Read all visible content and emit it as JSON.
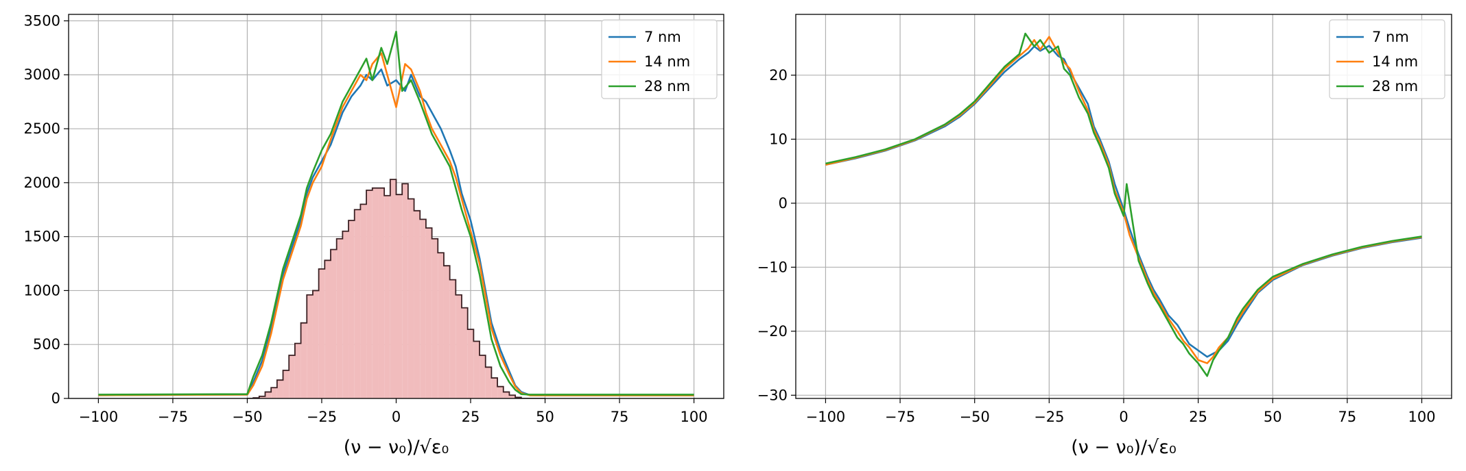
{
  "chart_data": [
    {
      "type": "line",
      "xlabel": "(ν − ν₀)/√ε₀",
      "xlim": [
        -110,
        110
      ],
      "ylim": [
        0,
        3560
      ],
      "xticks": [
        -100,
        -75,
        -50,
        -25,
        0,
        25,
        50,
        75,
        100
      ],
      "yticks": [
        0,
        500,
        1000,
        1500,
        2000,
        2500,
        3000,
        3500
      ],
      "xtick_labels": [
        "−100",
        "−75",
        "−50",
        "−25",
        "0",
        "25",
        "50",
        "75",
        "100"
      ],
      "ytick_labels": [
        "0",
        "500",
        "1000",
        "1500",
        "2000",
        "2500",
        "3000",
        "3500"
      ],
      "grid": true,
      "legend": "top-right",
      "series": [
        {
          "name": "7 nm",
          "color": "#1f77b4",
          "x": [
            -100,
            -50,
            -48,
            -45,
            -42,
            -40,
            -38,
            -35,
            -32,
            -30,
            -28,
            -25,
            -22,
            -20,
            -18,
            -15,
            -12,
            -10,
            -8,
            -5,
            -3,
            0,
            3,
            5,
            8,
            10,
            12,
            15,
            18,
            20,
            22,
            25,
            28,
            30,
            32,
            35,
            38,
            40,
            42,
            45,
            48,
            50,
            100
          ],
          "y": [
            30,
            35,
            150,
            350,
            650,
            900,
            1150,
            1400,
            1650,
            1900,
            2050,
            2200,
            2350,
            2500,
            2650,
            2800,
            2900,
            3000,
            2950,
            3050,
            2900,
            2950,
            2850,
            3000,
            2800,
            2750,
            2650,
            2500,
            2300,
            2150,
            1900,
            1650,
            1300,
            1000,
            700,
            450,
            250,
            120,
            60,
            30,
            28,
            28,
            28
          ]
        },
        {
          "name": "14 nm",
          "color": "#ff7f0e",
          "x": [
            -100,
            -50,
            -48,
            -45,
            -42,
            -40,
            -38,
            -35,
            -32,
            -30,
            -28,
            -25,
            -22,
            -20,
            -18,
            -15,
            -12,
            -10,
            -8,
            -5,
            -3,
            0,
            3,
            5,
            8,
            10,
            12,
            15,
            18,
            20,
            22,
            25,
            28,
            30,
            32,
            35,
            38,
            40,
            42,
            45,
            48,
            50,
            100
          ],
          "y": [
            30,
            35,
            120,
            300,
            600,
            850,
            1100,
            1350,
            1600,
            1850,
            2000,
            2150,
            2400,
            2550,
            2700,
            2850,
            3000,
            2950,
            3100,
            3200,
            3000,
            2700,
            3100,
            3050,
            2850,
            2650,
            2500,
            2350,
            2200,
            2050,
            1850,
            1550,
            1250,
            950,
            650,
            400,
            220,
            110,
            50,
            28,
            28,
            28,
            28
          ]
        },
        {
          "name": "28 nm",
          "color": "#2ca02c",
          "x": [
            -100,
            -50,
            -48,
            -45,
            -42,
            -40,
            -38,
            -35,
            -32,
            -30,
            -28,
            -25,
            -22,
            -20,
            -18,
            -15,
            -12,
            -10,
            -8,
            -5,
            -3,
            0,
            2,
            5,
            8,
            10,
            12,
            15,
            18,
            20,
            22,
            25,
            28,
            30,
            32,
            35,
            38,
            40,
            42,
            45,
            48,
            50,
            100
          ],
          "y": [
            35,
            40,
            200,
            400,
            700,
            950,
            1200,
            1450,
            1700,
            1950,
            2100,
            2300,
            2450,
            2600,
            2750,
            2900,
            3050,
            3150,
            2950,
            3250,
            3100,
            3400,
            2850,
            2950,
            2750,
            2600,
            2450,
            2300,
            2150,
            1950,
            1750,
            1500,
            1150,
            850,
            550,
            300,
            150,
            80,
            40,
            35,
            35,
            35,
            35
          ]
        }
      ],
      "histogram": {
        "color": "#f1bcbd",
        "edgecolor": "#3a1f22",
        "bin_edges": [
          -50,
          -48,
          -46,
          -44,
          -42,
          -40,
          -38,
          -36,
          -34,
          -32,
          -30,
          -28,
          -26,
          -24,
          -22,
          -20,
          -18,
          -16,
          -14,
          -12,
          -10,
          -8,
          -6,
          -4,
          -2,
          0,
          2,
          4,
          6,
          8,
          10,
          12,
          14,
          16,
          18,
          20,
          22,
          24,
          26,
          28,
          30,
          32,
          34,
          36,
          38,
          40,
          42,
          44,
          46,
          48,
          50
        ],
        "counts": [
          0,
          5,
          20,
          60,
          100,
          170,
          260,
          400,
          510,
          700,
          960,
          1000,
          1200,
          1280,
          1380,
          1480,
          1550,
          1650,
          1750,
          1800,
          1930,
          1950,
          1950,
          1880,
          2030,
          1890,
          1990,
          1850,
          1740,
          1660,
          1580,
          1480,
          1350,
          1230,
          1100,
          960,
          840,
          640,
          530,
          400,
          290,
          190,
          110,
          60,
          30,
          10,
          0,
          0,
          0,
          0
        ]
      }
    },
    {
      "type": "line",
      "xlabel": "(ν − ν₀)/√ε₀",
      "xlim": [
        -110,
        110
      ],
      "ylim": [
        -30.5,
        29.5
      ],
      "xticks": [
        -100,
        -75,
        -50,
        -25,
        0,
        25,
        50,
        75,
        100
      ],
      "yticks": [
        -30,
        -20,
        -10,
        0,
        10,
        20
      ],
      "xtick_labels": [
        "−100",
        "−75",
        "−50",
        "−25",
        "0",
        "25",
        "50",
        "75",
        "100"
      ],
      "ytick_labels": [
        "−30",
        "−20",
        "−10",
        "0",
        "10",
        "20"
      ],
      "grid": true,
      "legend": "top-right",
      "series": [
        {
          "name": "7 nm",
          "color": "#1f77b4",
          "x": [
            -100,
            -90,
            -80,
            -70,
            -60,
            -55,
            -50,
            -45,
            -40,
            -35,
            -32,
            -30,
            -28,
            -25,
            -22,
            -20,
            -18,
            -15,
            -12,
            -10,
            -8,
            -5,
            -3,
            0,
            2,
            5,
            8,
            10,
            12,
            15,
            18,
            20,
            22,
            25,
            28,
            30,
            32,
            35,
            38,
            40,
            45,
            50,
            60,
            70,
            80,
            90,
            100
          ],
          "y": [
            6.0,
            7.0,
            8.2,
            9.8,
            12.0,
            13.5,
            15.5,
            18.0,
            20.5,
            22.5,
            23.5,
            24.5,
            23.8,
            24.6,
            23.0,
            22.5,
            20.5,
            18.0,
            15.5,
            12.0,
            10.0,
            6.5,
            3.0,
            -1.0,
            -4.0,
            -8.0,
            -11.5,
            -13.5,
            -15.0,
            -17.5,
            -19.0,
            -20.5,
            -22.0,
            -23.0,
            -24.0,
            -23.5,
            -23.0,
            -21.5,
            -19.0,
            -17.5,
            -14.0,
            -12.0,
            -9.7,
            -8.2,
            -7.0,
            -6.1,
            -5.4
          ]
        },
        {
          "name": "14 nm",
          "color": "#ff7f0e",
          "x": [
            -100,
            -90,
            -80,
            -70,
            -60,
            -55,
            -50,
            -45,
            -40,
            -35,
            -32,
            -30,
            -28,
            -25,
            -22,
            -20,
            -18,
            -15,
            -12,
            -10,
            -8,
            -5,
            -3,
            0,
            2,
            5,
            8,
            10,
            12,
            15,
            18,
            20,
            22,
            25,
            28,
            30,
            32,
            35,
            38,
            40,
            45,
            50,
            60,
            70,
            80,
            90,
            100
          ],
          "y": [
            6.0,
            7.1,
            8.3,
            9.9,
            12.2,
            13.7,
            15.7,
            18.3,
            21.0,
            23.0,
            24.2,
            25.5,
            24.0,
            26.0,
            23.5,
            22.0,
            21.0,
            17.5,
            14.5,
            11.5,
            9.5,
            6.0,
            2.0,
            -1.5,
            -5.0,
            -8.5,
            -12.0,
            -14.0,
            -15.5,
            -18.0,
            -20.0,
            -21.5,
            -22.5,
            -24.5,
            -25.0,
            -24.0,
            -22.5,
            -21.0,
            -18.5,
            -17.0,
            -13.8,
            -11.8,
            -9.6,
            -8.1,
            -6.9,
            -6.0,
            -5.3
          ]
        },
        {
          "name": "28 nm",
          "color": "#2ca02c",
          "x": [
            -100,
            -90,
            -80,
            -70,
            -60,
            -55,
            -50,
            -45,
            -40,
            -35,
            -33,
            -30,
            -28,
            -25,
            -22,
            -20,
            -18,
            -15,
            -12,
            -10,
            -8,
            -5,
            -3,
            0,
            1,
            5,
            8,
            10,
            12,
            15,
            18,
            20,
            22,
            25,
            28,
            30,
            32,
            35,
            38,
            40,
            45,
            50,
            60,
            70,
            80,
            90,
            100
          ],
          "y": [
            6.2,
            7.2,
            8.4,
            10.0,
            12.3,
            13.9,
            15.9,
            18.6,
            21.3,
            23.3,
            26.5,
            24.5,
            25.5,
            23.5,
            24.5,
            21.0,
            20.0,
            16.5,
            14.0,
            11.0,
            9.0,
            5.5,
            1.5,
            -2.0,
            3.0,
            -9.0,
            -12.5,
            -14.5,
            -16.0,
            -18.5,
            -21.0,
            -22.0,
            -23.5,
            -25.0,
            -27.0,
            -24.5,
            -23.0,
            -21.0,
            -18.0,
            -16.5,
            -13.5,
            -11.5,
            -9.5,
            -8.0,
            -6.8,
            -5.9,
            -5.2
          ]
        }
      ]
    }
  ]
}
